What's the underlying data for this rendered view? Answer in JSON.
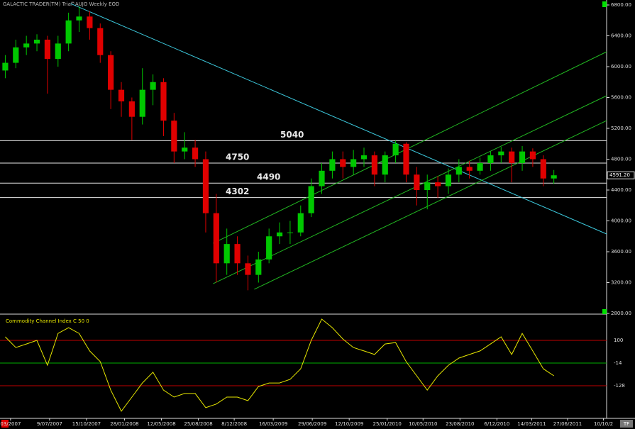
{
  "header": {
    "app": "GALACTIC TRADER(TM) Trial",
    "symbol": "^AUJO Weekly EOD",
    "corner": "TF"
  },
  "chart_data": [
    {
      "type": "candlestick",
      "background": "#000000",
      "up_color": "#00c800",
      "down_color": "#e00000",
      "open": [
        5950,
        6050,
        6250,
        6300,
        6350,
        6100,
        6300,
        6600,
        6650,
        6500,
        6150,
        5700,
        5550,
        5350,
        5700,
        5800,
        5300,
        4900,
        4950,
        4800,
        4100,
        3450,
        3700,
        3450,
        3300,
        3500,
        3800,
        3850,
        3850,
        4100,
        4450,
        4650,
        4800,
        4700,
        4800,
        4850,
        4600,
        4850,
        5000,
        4600,
        4400,
        4500,
        4450,
        4600,
        4700,
        4650,
        4750,
        4850,
        4900,
        4750,
        4900,
        4800,
        4550
      ],
      "high": [
        6150,
        6350,
        6400,
        6420,
        6400,
        6400,
        6700,
        6780,
        6720,
        6560,
        6200,
        5800,
        5600,
        5980,
        5900,
        5850,
        5400,
        5150,
        5050,
        4900,
        4350,
        3900,
        3800,
        3550,
        3600,
        3900,
        3980,
        4000,
        4200,
        4550,
        4750,
        4900,
        4900,
        4920,
        4950,
        4900,
        4900,
        5040,
        5020,
        4700,
        4600,
        4580,
        4680,
        4800,
        4780,
        4820,
        4900,
        4960,
        4950,
        4970,
        4940,
        4850,
        4660
      ],
      "low": [
        5850,
        5980,
        6150,
        6200,
        5650,
        6000,
        6200,
        6450,
        6350,
        6050,
        5450,
        5350,
        5050,
        5250,
        5500,
        5100,
        4750,
        4800,
        4700,
        3850,
        3200,
        3300,
        3300,
        3100,
        3200,
        3450,
        3700,
        3700,
        3800,
        4050,
        4350,
        4550,
        4550,
        4600,
        4700,
        4450,
        4500,
        4750,
        4500,
        4200,
        4150,
        4300,
        4350,
        4500,
        4550,
        4600,
        4650,
        4750,
        4500,
        4650,
        4700,
        4450,
        4480
      ],
      "close": [
        6050,
        6250,
        6300,
        6350,
        6100,
        6300,
        6600,
        6650,
        6500,
        6150,
        5700,
        5550,
        5350,
        5700,
        5800,
        5300,
        4900,
        4950,
        4800,
        4100,
        3450,
        3700,
        3450,
        3300,
        3500,
        3800,
        3850,
        3850,
        4100,
        4450,
        4650,
        4800,
        4700,
        4800,
        4850,
        4600,
        4850,
        5000,
        4600,
        4400,
        4500,
        4450,
        4600,
        4700,
        4650,
        4750,
        4850,
        4900,
        4750,
        4900,
        4800,
        4550,
        4591.2
      ],
      "xlim": [
        -0.5,
        57
      ],
      "ylim": [
        2800,
        6800
      ],
      "yticks": [
        {
          "value": 6800,
          "label": "6800.00"
        },
        {
          "value": 6400,
          "label": "6400.00"
        },
        {
          "value": 6000,
          "label": "6000.00"
        },
        {
          "value": 5600,
          "label": "5600.00"
        },
        {
          "value": 5200,
          "label": "5200.00"
        },
        {
          "value": 4800,
          "label": "4800.00"
        },
        {
          "value": 4400,
          "label": "4400.00"
        },
        {
          "value": 4000,
          "label": "4000.00"
        },
        {
          "value": 3600,
          "label": "3600.00"
        },
        {
          "value": 3200,
          "label": "3200.00"
        },
        {
          "value": 2800,
          "label": "2800.00"
        }
      ],
      "last_price": {
        "value": 4591.2,
        "label": "4591.20"
      },
      "levels": [
        5040,
        4750,
        4490,
        4302
      ],
      "trendlines": [
        {
          "color": "#3cc8dc",
          "points": [
            [
              6.2,
              6818
            ],
            [
              57,
              3830
            ]
          ]
        },
        {
          "color": "#22b822",
          "points": [
            [
              19.7,
              3710
            ],
            [
              57,
              6193
            ]
          ]
        },
        {
          "color": "#22b822",
          "points": [
            [
              19.7,
              3186
            ],
            [
              57,
              5623
            ]
          ]
        },
        {
          "color": "#22b822",
          "points": [
            [
              23.6,
              3113
            ],
            [
              57,
              5301
            ]
          ]
        }
      ]
    },
    {
      "type": "line",
      "title": "Commodity Channel Index C 50 0",
      "color": "#e6e600",
      "values": [
        118,
        64,
        82,
        100,
        -25,
        135,
        164,
        135,
        47,
        -7,
        -150,
        -256,
        -185,
        -114,
        -60,
        -150,
        -185,
        -167,
        -167,
        -238,
        -220,
        -185,
        -185,
        -203,
        -132,
        -114,
        -114,
        -96,
        -43,
        100,
        207,
        164,
        107,
        64,
        47,
        29,
        82,
        89,
        -7,
        -78,
        -150,
        -78,
        -25,
        11,
        29,
        47,
        82,
        118,
        29,
        135,
        47,
        -43,
        -78
      ],
      "xlim": [
        -0.5,
        57
      ],
      "ylim": [
        -292,
        232
      ],
      "yticks": [
        100,
        -14,
        -128
      ],
      "tick_colors": [
        "#c00000",
        "#00b000",
        "#c00000"
      ],
      "xticks": [
        {
          "value": 0.5,
          "label": "03/2007"
        },
        {
          "value": 4.2,
          "label": "9/07/2007"
        },
        {
          "value": 7.7,
          "label": "15/10/2007"
        },
        {
          "value": 11.3,
          "label": "28/01/2008"
        },
        {
          "value": 14.8,
          "label": "12/05/2008"
        },
        {
          "value": 18.3,
          "label": "25/08/2008"
        },
        {
          "value": 21.7,
          "label": "8/12/2008"
        },
        {
          "value": 25.4,
          "label": "16/03/2009"
        },
        {
          "value": 29.1,
          "label": "29/06/2009"
        },
        {
          "value": 32.6,
          "label": "12/10/2009"
        },
        {
          "value": 36.2,
          "label": "25/01/2010"
        },
        {
          "value": 39.6,
          "label": "10/05/2010"
        },
        {
          "value": 43.1,
          "label": "23/08/2010"
        },
        {
          "value": 46.6,
          "label": "6/12/2010"
        },
        {
          "value": 49.9,
          "label": "14/03/2011"
        },
        {
          "value": 53.3,
          "label": "27/06/2011"
        },
        {
          "value": 56.7,
          "label": "10/10/2"
        }
      ]
    }
  ]
}
